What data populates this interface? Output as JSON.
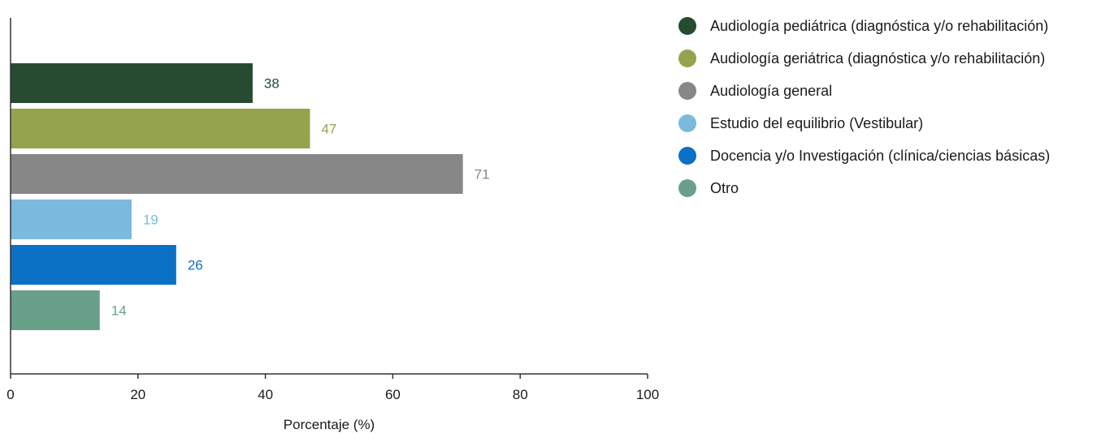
{
  "chart_data": {
    "type": "bar",
    "orientation": "horizontal",
    "title": "",
    "xlabel": "Porcentaje (%)",
    "ylabel": "",
    "xlim": [
      0,
      100
    ],
    "xticks": [
      "0",
      "20",
      "40",
      "60",
      "80",
      "100"
    ],
    "grid": false,
    "legend_position": "right",
    "series": [
      {
        "name": "Audiología pediátrica (diagnóstica y/o rehabilitación)",
        "value": 38,
        "color": "#274b30"
      },
      {
        "name": "Audiología geriátrica (diagnóstica y/o rehabilitación)",
        "value": 47,
        "color": "#95a34d"
      },
      {
        "name": "Audiología general",
        "value": 71,
        "color": "#878787"
      },
      {
        "name": "Estudio del equilibrio (Vestibular)",
        "value": 19,
        "color": "#7bb9df"
      },
      {
        "name": "Docencia y/o Investigación (clínica/ciencias básicas)",
        "value": 26,
        "color": "#0a71c4"
      },
      {
        "name": "Otro",
        "value": 14,
        "color": "#69a08a"
      }
    ]
  }
}
